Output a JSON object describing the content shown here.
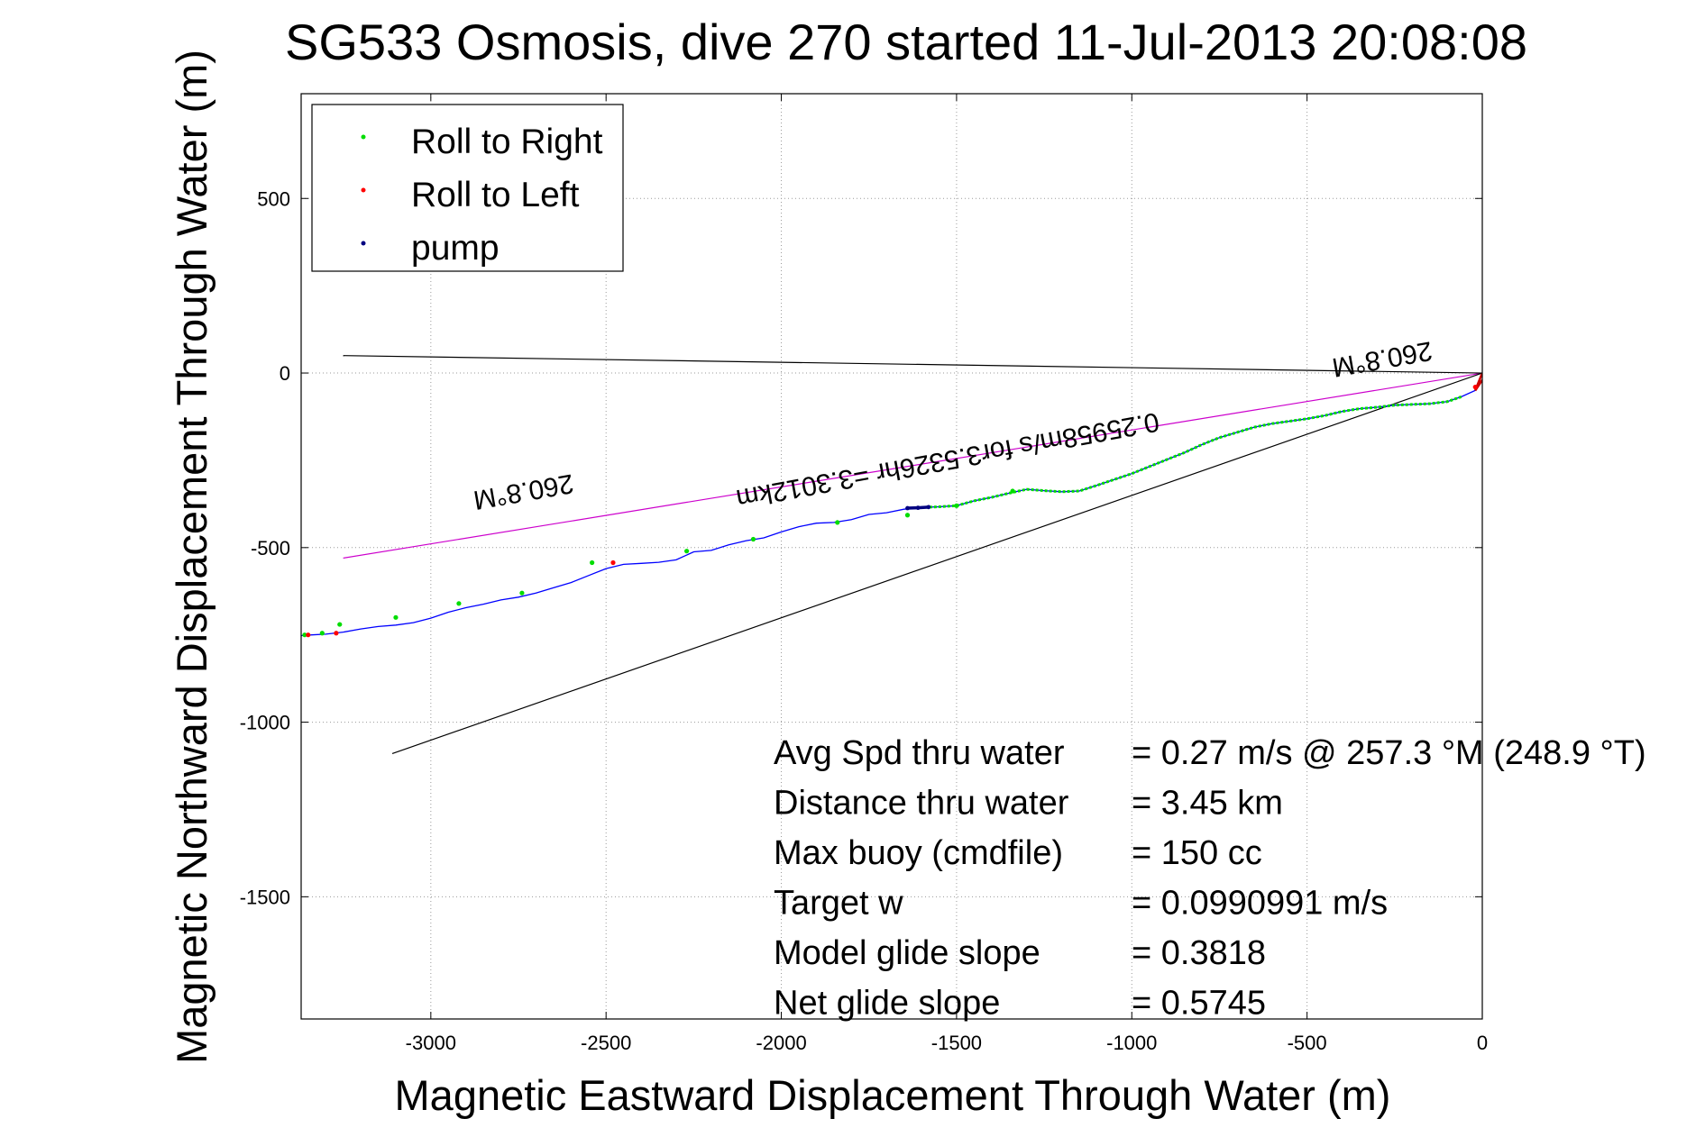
{
  "chart_data": {
    "type": "line",
    "title": "SG533 Osmosis, dive 270 started 11-Jul-2013 20:08:08",
    "xlabel": "Magnetic Eastward Displacement Through Water (m)",
    "ylabel": "Magnetic Northward Displacement Through Water (m)",
    "xlim": [
      -3370,
      0
    ],
    "ylim": [
      -1850,
      800
    ],
    "grid": true,
    "legend_position": "top-left",
    "x_ticks": [
      -3000,
      -2500,
      -2000,
      -1500,
      -1000,
      -500,
      0
    ],
    "y_ticks": [
      500,
      0,
      -500,
      -1000,
      -1500
    ],
    "legend": [
      {
        "label": "Roll to Right",
        "color": "#00dd00"
      },
      {
        "label": "Roll to Left",
        "color": "#ff0000"
      },
      {
        "label": "pump",
        "color": "#000080"
      }
    ],
    "track": {
      "color": "#0000ff",
      "x": [
        0,
        -20,
        -60,
        -100,
        -150,
        -200,
        -250,
        -300,
        -350,
        -400,
        -450,
        -500,
        -550,
        -600,
        -650,
        -700,
        -750,
        -800,
        -850,
        -900,
        -950,
        -1000,
        -1050,
        -1100,
        -1150,
        -1200,
        -1250,
        -1300,
        -1350,
        -1400,
        -1450,
        -1500,
        -1550,
        -1600,
        -1650,
        -1700,
        -1750,
        -1800,
        -1850,
        -1900,
        -1950,
        -2000,
        -2050,
        -2100,
        -2150,
        -2200,
        -2250,
        -2300,
        -2350,
        -2400,
        -2450,
        -2500,
        -2550,
        -2600,
        -2650,
        -2700,
        -2750,
        -2800,
        -2850,
        -2900,
        -2950,
        -3000,
        -3050,
        -3100,
        -3150,
        -3200,
        -3250,
        -3300,
        -3340,
        -3370
      ],
      "y": [
        -20,
        -50,
        -68,
        -82,
        -88,
        -90,
        -92,
        -98,
        -102,
        -110,
        -122,
        -131,
        -138,
        -145,
        -155,
        -170,
        -185,
        -205,
        -228,
        -248,
        -268,
        -288,
        -305,
        -322,
        -338,
        -340,
        -337,
        -333,
        -344,
        -356,
        -366,
        -380,
        -383,
        -385,
        -390,
        -400,
        -405,
        -420,
        -428,
        -430,
        -440,
        -455,
        -472,
        -480,
        -492,
        -508,
        -512,
        -535,
        -542,
        -545,
        -548,
        -560,
        -580,
        -600,
        -615,
        -630,
        -642,
        -650,
        -662,
        -672,
        -685,
        -702,
        -715,
        -722,
        -726,
        -733,
        -742,
        -748,
        -750,
        -752
      ]
    },
    "roll_right_x": [
      -1340,
      -1500,
      -1640,
      -1840,
      -2080,
      -2270,
      -2540,
      -2740,
      -2920,
      -3100,
      -3260,
      -3310,
      -3360
    ],
    "roll_right_y": [
      -338,
      -380,
      -407,
      -428,
      -476,
      -510,
      -543,
      -630,
      -660,
      -700,
      -720,
      -745,
      -750
    ],
    "roll_left_x": [
      -20,
      -2480,
      -3270,
      -3350
    ],
    "roll_left_y": [
      -40,
      -543,
      -745,
      -750
    ],
    "pump_x": [
      -1580,
      -1610,
      -1640
    ],
    "pump_y": [
      -384,
      -386,
      -387
    ],
    "heading_lines": [
      {
        "color": "#cc00cc",
        "x": [
          0,
          -3250
        ],
        "y": [
          0,
          -530
        ],
        "label": "260.8°M"
      },
      {
        "color": "#000000",
        "x": [
          0,
          -3250
        ],
        "y": [
          0,
          50
        ]
      },
      {
        "color": "#000000",
        "x": [
          0,
          -3110
        ],
        "y": [
          0,
          -1090
        ]
      }
    ],
    "annotations": [
      {
        "text": "260.8°M",
        "x": -2740,
        "y": -315
      },
      {
        "text": "260.8°M",
        "x": -290,
        "y": 65
      },
      {
        "text": "0.25958m/s for3.5326hr =3.3012km",
        "x": -1530,
        "y": -225
      }
    ],
    "stats": [
      {
        "label": "Avg Spd thru water",
        "value": "=  0.27 m/s @ 257.3 °M (248.9 °T)"
      },
      {
        "label": "Distance thru water",
        "value": "=  3.45 km"
      },
      {
        "label": "Max buoy (cmdfile)",
        "value": "= 150 cc"
      },
      {
        "label": "Target w",
        "value": "= 0.0990991 m/s"
      },
      {
        "label": "Model glide slope",
        "value": "= 0.3818"
      },
      {
        "label": "Net glide slope",
        "value": "= 0.5745"
      }
    ]
  }
}
